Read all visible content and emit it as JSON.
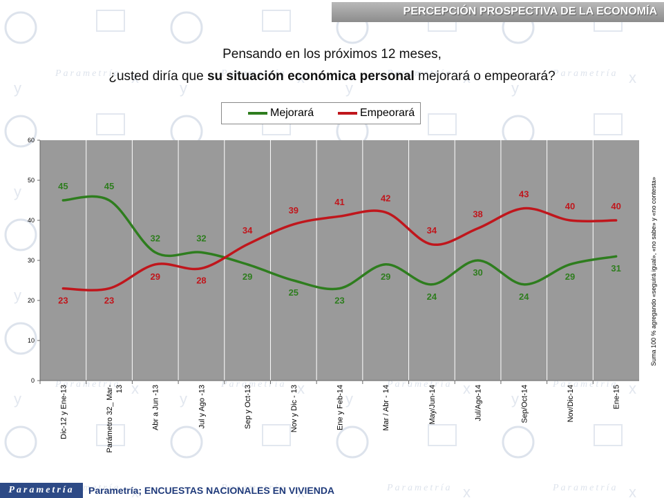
{
  "header": {
    "title": "PERCEPCIÓN PROSPECTIVA DE LA ECONOMÍA"
  },
  "question": {
    "line1": "Pensando en los próximos 12 meses,",
    "line2_prefix": "¿usted diría que ",
    "line2_bold": "su situación económica personal",
    "line2_suffix": " mejorará o empeorará?"
  },
  "side_note": "Suma 100 %  agregando «seguirá igual», «no sabe» y «no contesta»",
  "footer": {
    "logo": "Parametría",
    "source": "Parametría; ENCUESTAS NACIONALES EN VIVIENDA"
  },
  "background_watermark": "Parametría",
  "colors": {
    "mejorara": "#2e7d1e",
    "empeorara": "#c0161c",
    "plot_bg": "#9a9a9a",
    "header_text": "#ffffff",
    "footer_logo_bg": "#2d4a86"
  },
  "chart_data": {
    "type": "line",
    "categories": [
      "Dic-12 y Ene-13",
      "Parámetro 32_ Mar-13",
      "Abr a Jun -13",
      "Jul y Ago -13",
      "Sep y Oct-13",
      "Nov y Dic - 13",
      "Ene y Feb-14",
      "Mar / Abr - 14",
      "May/Jun-14",
      "Jul/Ago-14",
      "Sep/Oct-14",
      "Nov/Dic-14",
      "Ene-15"
    ],
    "series": [
      {
        "name": "Mejorará",
        "color": "#2e7d1e",
        "values": [
          45,
          45,
          32,
          32,
          29,
          25,
          23,
          29,
          24,
          30,
          24,
          29,
          31
        ]
      },
      {
        "name": "Empeorará",
        "color": "#c0161c",
        "values": [
          23,
          23,
          29,
          28,
          34,
          39,
          41,
          42,
          34,
          38,
          43,
          40,
          40
        ]
      }
    ],
    "ylim": [
      0,
      60
    ],
    "yticks": [
      0,
      10,
      20,
      30,
      40,
      50,
      60
    ],
    "legend_position": "top-center",
    "grid": "vertical"
  }
}
